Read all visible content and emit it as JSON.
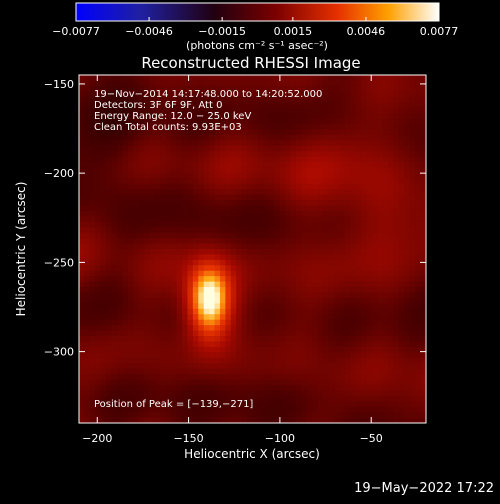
{
  "chart_data": {
    "type": "heatmap",
    "title": "Reconstructed RHESSI Image",
    "xlabel": "Heliocentric X (arcsec)",
    "ylabel": "Heliocentric Y (arcsec)",
    "xlim": [
      -210,
      -20
    ],
    "ylim": [
      -340,
      -145
    ],
    "xticks": [
      -200,
      -150,
      -100,
      -50
    ],
    "xtick_labels": [
      "−200",
      "−150",
      "−100",
      "−50"
    ],
    "yticks": [
      -150,
      -200,
      -250,
      -300
    ],
    "ytick_labels": [
      "−150",
      "−200",
      "−250",
      "−300"
    ],
    "colorbar": {
      "range": [
        -0.0077,
        0.0077
      ],
      "ticks": [
        -0.0077,
        -0.0046,
        -0.0015,
        0.0015,
        0.0046,
        0.0077
      ],
      "tick_labels": [
        "−0.0077",
        "−0.0046",
        "−0.0015",
        "0.0015",
        "0.0046",
        "0.0077"
      ],
      "units": "(photons cm⁻² s⁻¹ asec⁻²)"
    },
    "info_lines": [
      "19−Nov−2014 14:17:48.000 to 14:20:52.000",
      "Detectors: 3F 6F 9F, Att 0",
      "Energy Range: 12.0 − 25.0 keV",
      "Clean     Total counts: 9.93E+03"
    ],
    "peak_label": "Position of Peak = [−139,−271]",
    "peak": {
      "x": -139,
      "y": -271
    },
    "colormap": "red-temperature"
  },
  "footer": {
    "date": "19−May−2022 17:22"
  }
}
